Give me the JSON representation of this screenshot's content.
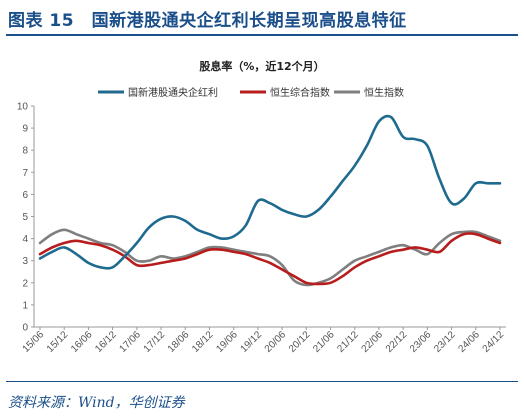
{
  "header": {
    "title": "图表 15　国新港股通央企红利长期呈现高股息特征"
  },
  "footer": {
    "source": "资料来源：Wind，华创证券"
  },
  "chart_data": {
    "type": "line",
    "title": "股息率（%，近12个月）",
    "xlabel": "",
    "ylabel": "",
    "ylim": [
      0,
      10
    ],
    "yticks": [
      0,
      1,
      2,
      3,
      4,
      5,
      6,
      7,
      8,
      9,
      10
    ],
    "grid": false,
    "legend_position": "top",
    "x_tick_labels": [
      "15/06",
      "15/12",
      "16/06",
      "16/12",
      "17/06",
      "17/12",
      "18/06",
      "18/12",
      "19/06",
      "19/12",
      "20/06",
      "20/12",
      "21/06",
      "21/12",
      "22/06",
      "22/12",
      "23/06",
      "23/12",
      "24/06",
      "24/12"
    ],
    "x": [
      0,
      1,
      2,
      3,
      4,
      5,
      6,
      7,
      8,
      9,
      10,
      11,
      12,
      13,
      14,
      15,
      16,
      17,
      18,
      19
    ],
    "series": [
      {
        "name": "国新港股通央企红利",
        "color": "#1f6a8f",
        "x": [
          0,
          0.5,
          1,
          1.5,
          2,
          2.5,
          3,
          3.5,
          4,
          4.5,
          5,
          5.5,
          6,
          6.5,
          7,
          7.5,
          8,
          8.5,
          9,
          9.5,
          10,
          10.5,
          11,
          11.5,
          12,
          12.5,
          13,
          13.5,
          14,
          14.5,
          15,
          15.5,
          16,
          16.5,
          17,
          17.5,
          18,
          18.5,
          19
        ],
        "values": [
          3.1,
          3.4,
          3.6,
          3.3,
          2.9,
          2.7,
          2.7,
          3.2,
          3.8,
          4.5,
          4.9,
          5.0,
          4.8,
          4.4,
          4.2,
          4.0,
          4.1,
          4.6,
          5.7,
          5.6,
          5.3,
          5.1,
          5.0,
          5.3,
          5.9,
          6.6,
          7.3,
          8.2,
          9.3,
          9.5,
          8.6,
          8.5,
          8.2,
          6.7,
          5.6,
          5.8,
          6.5,
          6.5,
          6.5
        ]
      },
      {
        "name": "恒生综合指数",
        "color": "#b81c1c",
        "x": [
          0,
          0.5,
          1,
          1.5,
          2,
          2.5,
          3,
          3.5,
          4,
          4.5,
          5,
          5.5,
          6,
          6.5,
          7,
          7.5,
          8,
          8.5,
          9,
          9.5,
          10,
          10.5,
          11,
          11.5,
          12,
          12.5,
          13,
          13.5,
          14,
          14.5,
          15,
          15.5,
          16,
          16.5,
          17,
          17.5,
          18,
          18.5,
          19
        ],
        "values": [
          3.3,
          3.6,
          3.8,
          3.9,
          3.8,
          3.7,
          3.5,
          3.2,
          2.8,
          2.8,
          2.9,
          3.0,
          3.1,
          3.3,
          3.5,
          3.5,
          3.4,
          3.3,
          3.1,
          2.9,
          2.6,
          2.3,
          2.0,
          1.95,
          2.0,
          2.3,
          2.7,
          3.0,
          3.2,
          3.4,
          3.5,
          3.6,
          3.5,
          3.4,
          3.9,
          4.2,
          4.2,
          4.0,
          3.8
        ]
      },
      {
        "name": "恒生指数",
        "color": "#7f7f7f",
        "x": [
          0,
          0.5,
          1,
          1.5,
          2,
          2.5,
          3,
          3.5,
          4,
          4.5,
          5,
          5.5,
          6,
          6.5,
          7,
          7.5,
          8,
          8.5,
          9,
          9.5,
          10,
          10.5,
          11,
          11.5,
          12,
          12.5,
          13,
          13.5,
          14,
          14.5,
          15,
          15.5,
          16,
          16.5,
          17,
          17.5,
          18,
          18.5,
          19
        ],
        "values": [
          3.8,
          4.2,
          4.4,
          4.2,
          4.0,
          3.8,
          3.7,
          3.4,
          3.0,
          3.0,
          3.2,
          3.1,
          3.2,
          3.4,
          3.6,
          3.6,
          3.5,
          3.4,
          3.3,
          3.2,
          2.8,
          2.1,
          1.9,
          2.0,
          2.2,
          2.6,
          3.0,
          3.2,
          3.4,
          3.6,
          3.7,
          3.5,
          3.3,
          3.8,
          4.2,
          4.3,
          4.3,
          4.1,
          3.9
        ]
      }
    ]
  }
}
